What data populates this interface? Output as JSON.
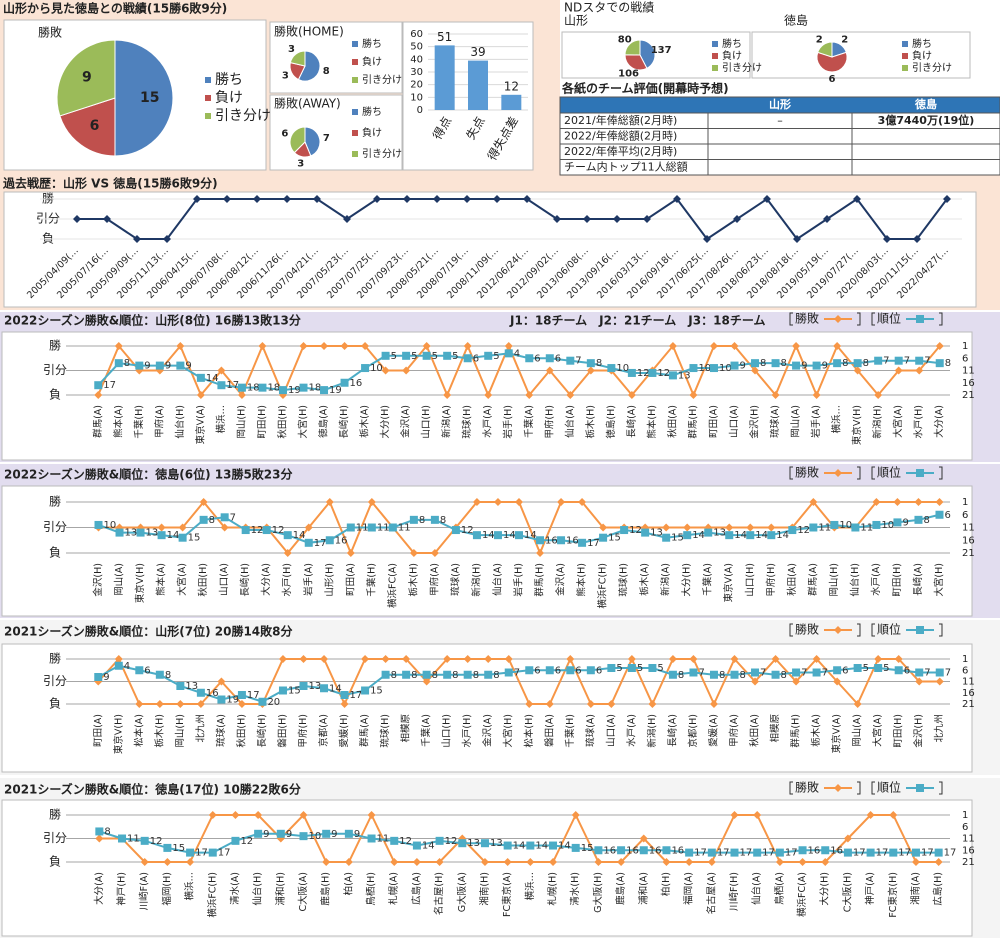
{
  "panels": {
    "record": "山形から見た徳島との戦績(15勝6敗9分)",
    "nd": "NDスタでの戦績"
  },
  "table": {
    "title": "各紙のチーム評価(開幕時予想)",
    "header": [
      "山形",
      "徳島"
    ],
    "rows": [
      {
        "label": "2021/年俸総額(2月時)",
        "cells": [
          "–",
          "3億7440万(19位)"
        ]
      },
      {
        "label": "2022/年俸総額(2月時)"
      },
      {
        "label": "2022/年俸平均(2月時)"
      },
      {
        "label": "チーム内トップ11人総額"
      }
    ]
  },
  "chart_data": [
    {
      "type": "pie",
      "title": "勝敗",
      "categories": [
        "勝ち",
        "負け",
        "引き分け"
      ],
      "values": [
        15,
        6,
        9
      ],
      "colors": [
        "#4f81bd",
        "#c0504d",
        "#9bbb59"
      ]
    },
    {
      "type": "pie",
      "title": "勝敗(HOME)",
      "categories": [
        "勝ち",
        "負け",
        "引き分け"
      ],
      "values": [
        8,
        3,
        3
      ],
      "colors": [
        "#4f81bd",
        "#c0504d",
        "#9bbb59"
      ]
    },
    {
      "type": "pie",
      "title": "勝敗(AWAY)",
      "categories": [
        "勝ち",
        "負け",
        "引き分け"
      ],
      "values": [
        7,
        3,
        6
      ],
      "colors": [
        "#4f81bd",
        "#c0504d",
        "#9bbb59"
      ]
    },
    {
      "type": "bar",
      "categories": [
        "得点",
        "失点",
        "得失点差"
      ],
      "values": [
        51,
        39,
        12
      ],
      "color": "#5b9bd5",
      "ylim": [
        0,
        60
      ],
      "yticks": [
        0,
        10,
        20,
        30,
        40,
        50,
        60
      ],
      "grid": true
    },
    {
      "type": "pie",
      "title": "山形",
      "categories": [
        "勝ち",
        "負け",
        "引き分け"
      ],
      "values": [
        137,
        106,
        80
      ],
      "colors": [
        "#4f81bd",
        "#c0504d",
        "#9bbb59"
      ]
    },
    {
      "type": "pie",
      "title": "徳島",
      "categories": [
        "勝ち",
        "負け",
        "引き分け"
      ],
      "values": [
        2,
        6,
        2
      ],
      "colors": [
        "#4f81bd",
        "#c0504d",
        "#9bbb59"
      ]
    },
    {
      "type": "line",
      "title": "過去戦歴：山形 VS 徳島(15勝6敗9分)",
      "categories": [
        "2005/04/09(…",
        "2005/07/16(…",
        "2005/09/09(…",
        "2005/11/13(…",
        "2006/04/15(…",
        "2006/07/08(…",
        "2006/08/12(…",
        "2006/11/26(…",
        "2007/04/21(…",
        "2007/05/23(…",
        "2007/07/25(…",
        "2007/09/23(…",
        "2008/05/21(…",
        "2008/07/19(…",
        "2008/11/09(…",
        "2012/06/24(…",
        "2012/09/02(…",
        "2013/06/08(…",
        "2013/09/16(…",
        "2016/03/13(…",
        "2016/09/18(…",
        "2017/06/25(…",
        "2017/08/26(…",
        "2018/06/23(…",
        "2018/08/18(…",
        "2019/05/19(…",
        "2019/07/27(…",
        "2020/08/03(…",
        "2020/11/15(…",
        "2022/04/27(…"
      ],
      "series": [
        {
          "color": "#1f3864",
          "marker": "diamond",
          "values": [
            0,
            0,
            -1,
            -1,
            1,
            1,
            1,
            1,
            1,
            0,
            1,
            1,
            1,
            1,
            1,
            1,
            0,
            0,
            0,
            0,
            1,
            -1,
            0,
            1,
            -1,
            0,
            1,
            -1,
            -1,
            1
          ]
        }
      ],
      "ylim": [
        -1,
        1
      ],
      "yticks": [
        {
          "value": -1,
          "label": "負"
        },
        {
          "value": 0,
          "label": "引分"
        },
        {
          "value": 1,
          "label": "勝"
        }
      ],
      "grid": false
    },
    {
      "type": "line",
      "title": "2022シーズン勝敗&順位：山形(8位) 16勝13敗13分",
      "annotation": "J1：18チーム　J2：21チーム　J3：18チーム",
      "categories": [
        "群馬(A)",
        "熊本(A)",
        "千葉(H)",
        "甲府(A)",
        "仙台(H)",
        "東京V(A)",
        "横浜…",
        "岡山(H)",
        "町田(H)",
        "秋田(H)",
        "大宮(H)",
        "徳島(A)",
        "長崎(H)",
        "栃木(A)",
        "大分(H)",
        "金沢(A)",
        "山口(H)",
        "新潟(A)",
        "琉球(H)",
        "水戸(A)",
        "岩手(H)",
        "千葉(A)",
        "甲府(H)",
        "仙台(A)",
        "栃木(H)",
        "徳島(H)",
        "長崎(A)",
        "熊本(H)",
        "秋田(A)",
        "群馬(H)",
        "町田(A)",
        "山口(A)",
        "金沢(H)",
        "琉球(A)",
        "岡山(A)",
        "岩手(A)",
        "横浜…",
        "東京V(H)",
        "新潟(H)",
        "大宮(A)",
        "水戸(H)",
        "大分(A)"
      ],
      "series": [
        {
          "name": "勝敗",
          "color": "#f79646",
          "marker": "diamond",
          "values": [
            -1,
            1,
            0,
            0,
            1,
            -1,
            0,
            -1,
            1,
            -1,
            1,
            1,
            1,
            1,
            0,
            0,
            1,
            -1,
            1,
            -1,
            1,
            -1,
            0,
            -1,
            0,
            0,
            -1,
            0,
            1,
            -1,
            1,
            1,
            0,
            -1,
            1,
            -1,
            1,
            0,
            -1,
            0,
            0,
            1
          ]
        },
        {
          "name": "順位",
          "color": "#4bacc6",
          "marker": "square",
          "axis": "y2",
          "show_labels": true,
          "values": [
            17,
            8,
            9,
            9,
            9,
            14,
            17,
            18,
            18,
            19,
            18,
            19,
            16,
            10,
            5,
            5,
            5,
            5,
            6,
            5,
            4,
            6,
            6,
            7,
            8,
            10,
            12,
            12,
            13,
            10,
            10,
            9,
            8,
            8,
            9,
            9,
            8,
            8,
            7,
            7,
            7,
            8
          ]
        }
      ],
      "ylim": [
        -1,
        1
      ],
      "yticks": [
        {
          "value": -1,
          "label": "負"
        },
        {
          "value": 0,
          "label": "引分"
        },
        {
          "value": 1,
          "label": "勝"
        }
      ],
      "y2lim": [
        21,
        1
      ],
      "y2ticks": [
        1,
        6,
        11,
        16,
        21
      ],
      "grid": true
    },
    {
      "type": "line",
      "title": "2022シーズン勝敗&順位：徳島(6位) 13勝5敗23分",
      "categories": [
        "金沢(H)",
        "岡山(A)",
        "東京V(H)",
        "熊本(A)",
        "大宮(A)",
        "秋田(H)",
        "山口(A)",
        "長崎(H)",
        "大分(A)",
        "水戸(H)",
        "岩手(A)",
        "山形(H)",
        "町田(A)",
        "千葉(H)",
        "横浜FC(A)",
        "栃木(H)",
        "甲府(A)",
        "琉球(A)",
        "新潟(H)",
        "仙台(A)",
        "岩手(H)",
        "群馬(H)",
        "金沢(A)",
        "熊本(H)",
        "横浜FC(H)",
        "琉球(H)",
        "栃木(A)",
        "新潟(A)",
        "大分(H)",
        "千葉(A)",
        "東京V(A)",
        "山口(H)",
        "甲府(H)",
        "秋田(A)",
        "群馬(A)",
        "岡山(H)",
        "仙台(H)",
        "水戸(A)",
        "町田(H)",
        "長崎(A)",
        "大宮(H)"
      ],
      "series": [
        {
          "name": "勝敗",
          "color": "#f79646",
          "marker": "diamond",
          "values": [
            0,
            0,
            0,
            0,
            0,
            1,
            0,
            0,
            0,
            -1,
            0,
            1,
            -1,
            1,
            0,
            -1,
            -1,
            0,
            1,
            1,
            1,
            -1,
            1,
            1,
            0,
            0,
            0,
            0,
            0,
            0,
            0,
            0,
            0,
            0,
            1,
            0,
            0,
            1,
            1,
            1,
            1
          ]
        },
        {
          "name": "順位",
          "color": "#4bacc6",
          "marker": "square",
          "axis": "y2",
          "show_labels": true,
          "values": [
            10,
            13,
            13,
            14,
            15,
            8,
            7,
            12,
            12,
            14,
            17,
            16,
            11,
            11,
            11,
            8,
            8,
            12,
            14,
            14,
            14,
            16,
            16,
            17,
            15,
            12,
            13,
            15,
            14,
            13,
            14,
            14,
            14,
            12,
            11,
            10,
            11,
            10,
            9,
            8,
            6
          ]
        }
      ],
      "ylim": [
        -1,
        1
      ],
      "yticks": [
        {
          "value": -1,
          "label": "負"
        },
        {
          "value": 0,
          "label": "引分"
        },
        {
          "value": 1,
          "label": "勝"
        }
      ],
      "y2lim": [
        21,
        1
      ],
      "y2ticks": [
        1,
        6,
        11,
        16,
        21
      ],
      "grid": true
    },
    {
      "type": "line",
      "title": "2021シーズン勝敗&順位：山形(7位) 20勝14敗8分",
      "categories": [
        "町田(A)",
        "東京V(H)",
        "松本(A)",
        "栃木(H)",
        "岡山(H)",
        "北九州",
        "琉球(A)",
        "秋田(H)",
        "長崎(H)",
        "磐田(H)",
        "甲府(H)",
        "京都(A)",
        "愛媛(H)",
        "群馬(A)",
        "琉球(H)",
        "相模原",
        "千葉(A)",
        "山口(H)",
        "水戸(H)",
        "金沢(A)",
        "大宮(H)",
        "松本(H)",
        "磐田(A)",
        "千葉(H)",
        "琉球(A)",
        "山口(A)",
        "水戸(A)",
        "新潟(H)",
        "長崎(A)",
        "京都(H)",
        "愛媛(A)",
        "甲府(A)",
        "秋田(A)",
        "相模原",
        "群馬(H)",
        "栃木(A)",
        "東京V(A)",
        "岡山(A)",
        "大宮(A)",
        "町田(H)",
        "金沢(H)",
        "北九州"
      ],
      "series": [
        {
          "name": "勝敗",
          "color": "#f79646",
          "marker": "diamond",
          "values": [
            0,
            1,
            -1,
            -1,
            -1,
            -1,
            0,
            -1,
            -1,
            1,
            1,
            1,
            -1,
            1,
            1,
            1,
            0,
            1,
            1,
            1,
            1,
            -1,
            -1,
            1,
            -1,
            -1,
            1,
            -1,
            1,
            1,
            -1,
            1,
            0,
            1,
            0,
            1,
            0,
            -1,
            1,
            1,
            0,
            0
          ]
        },
        {
          "name": "順位",
          "color": "#4bacc6",
          "marker": "square",
          "axis": "y2",
          "show_labels": true,
          "values": [
            9,
            4,
            6,
            8,
            13,
            16,
            19,
            17,
            20,
            15,
            13,
            14,
            17,
            15,
            8,
            8,
            8,
            8,
            8,
            8,
            7,
            6,
            6,
            6,
            6,
            5,
            5,
            5,
            8,
            7,
            8,
            8,
            7,
            8,
            7,
            7,
            6,
            5,
            5,
            6,
            7,
            7
          ]
        }
      ],
      "ylim": [
        -1,
        1
      ],
      "yticks": [
        {
          "value": -1,
          "label": "負"
        },
        {
          "value": 0,
          "label": "引分"
        },
        {
          "value": 1,
          "label": "勝"
        }
      ],
      "y2lim": [
        21,
        1
      ],
      "y2ticks": [
        1,
        6,
        11,
        16,
        21
      ],
      "grid": true
    },
    {
      "type": "line",
      "title": "2021シーズン勝敗&順位：徳島(17位) 10勝22敗6分",
      "categories": [
        "大分(A)",
        "神戸(H)",
        "川崎F(A)",
        "福岡(H)",
        "横浜…",
        "横浜FC(H)",
        "清水(A)",
        "仙台(H)",
        "浦和(H)",
        "C大阪(A)",
        "鹿島(H)",
        "柏(A)",
        "鳥栖(H)",
        "札幌(A)",
        "広島(A)",
        "名古屋(H)",
        "G大阪(A)",
        "湘南(H)",
        "FC東京(A)",
        "横浜…",
        "札幌(H)",
        "清水(H)",
        "G大阪(H)",
        "鹿島(A)",
        "浦和(A)",
        "柏(H)",
        "福岡(A)",
        "名古屋(A)",
        "川崎F(H)",
        "仙台(A)",
        "鳥栖(A)",
        "横浜FC(A)",
        "大分(H)",
        "C大阪(H)",
        "神戸(A)",
        "FC東京(H)",
        "湘南(A)",
        "広島(H)"
      ],
      "series": [
        {
          "name": "勝敗",
          "color": "#f79646",
          "marker": "diamond",
          "values": [
            0,
            0,
            -1,
            -1,
            -1,
            1,
            1,
            1,
            0,
            1,
            -1,
            -1,
            1,
            -1,
            -1,
            -1,
            0,
            -1,
            -1,
            -1,
            -1,
            1,
            -1,
            -1,
            0,
            -1,
            -1,
            -1,
            1,
            1,
            -1,
            -1,
            -1,
            0,
            1,
            1,
            -1,
            -1
          ]
        },
        {
          "name": "順位",
          "color": "#4bacc6",
          "marker": "square",
          "axis": "y2",
          "show_labels": true,
          "values": [
            8,
            11,
            12,
            15,
            17,
            17,
            12,
            9,
            9,
            10,
            9,
            9,
            11,
            12,
            14,
            12,
            13,
            13,
            14,
            14,
            14,
            15,
            16,
            16,
            16,
            16,
            17,
            17,
            17,
            17,
            17,
            16,
            16,
            17,
            17,
            17,
            17,
            17
          ]
        }
      ],
      "ylim": [
        -1,
        1
      ],
      "yticks": [
        {
          "value": -1,
          "label": "負"
        },
        {
          "value": 0,
          "label": "引分"
        },
        {
          "value": 1,
          "label": "勝"
        }
      ],
      "y2lim": [
        21,
        1
      ],
      "y2ticks": [
        1,
        6,
        11,
        16,
        21
      ],
      "grid": true
    }
  ]
}
